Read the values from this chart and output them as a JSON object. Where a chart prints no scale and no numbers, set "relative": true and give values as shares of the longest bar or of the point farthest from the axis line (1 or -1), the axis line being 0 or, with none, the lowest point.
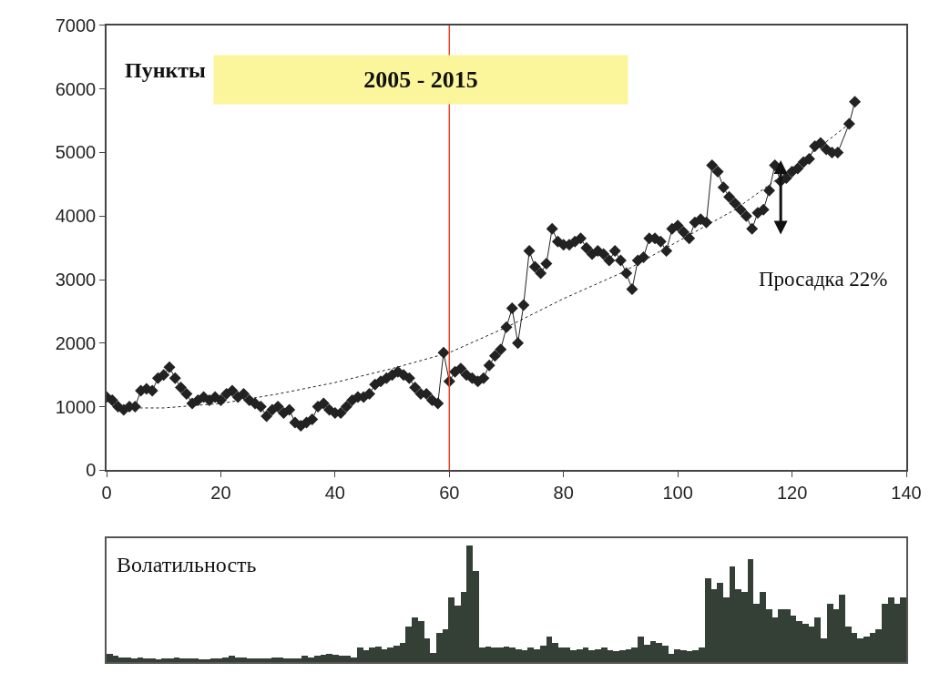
{
  "chart_data": [
    {
      "type": "line",
      "title": "2005 - 2015",
      "ylabel": "Пункты",
      "xlim": [
        0,
        140
      ],
      "xticks": [
        0,
        20,
        40,
        60,
        80,
        100,
        120,
        140
      ],
      "ylim": [
        0,
        7000
      ],
      "yticks": [
        0,
        1000,
        2000,
        3000,
        4000,
        5000,
        6000,
        7000
      ],
      "series": [
        {
          "color": "#222222",
          "marker": "diamond",
          "line_style": "solid",
          "x": [
            0,
            1,
            2,
            3,
            4,
            5,
            6,
            7,
            8,
            9,
            10,
            11,
            12,
            13,
            14,
            15,
            16,
            17,
            18,
            19,
            20,
            21,
            22,
            23,
            24,
            25,
            26,
            27,
            28,
            29,
            30,
            31,
            32,
            33,
            34,
            35,
            36,
            37,
            38,
            39,
            40,
            41,
            42,
            43,
            44,
            45,
            46,
            47,
            48,
            49,
            50,
            51,
            52,
            53,
            54,
            55,
            56,
            57,
            58,
            59,
            60,
            61,
            62,
            63,
            64,
            65,
            66,
            67,
            68,
            69,
            70,
            71,
            72,
            73,
            74,
            75,
            76,
            77,
            78,
            79,
            80,
            81,
            82,
            83,
            84,
            85,
            86,
            87,
            88,
            89,
            90,
            91,
            92,
            93,
            94,
            95,
            96,
            97,
            98,
            99,
            100,
            101,
            102,
            103,
            104,
            105,
            106,
            107,
            108,
            109,
            110,
            111,
            112,
            113,
            114,
            115,
            116,
            117,
            118,
            119,
            120,
            121,
            122,
            123,
            124,
            125,
            126,
            127,
            128,
            130,
            131
          ],
          "values": [
            1150,
            1100,
            1000,
            950,
            1000,
            1000,
            1250,
            1280,
            1250,
            1450,
            1500,
            1620,
            1450,
            1300,
            1200,
            1050,
            1100,
            1150,
            1100,
            1150,
            1100,
            1200,
            1250,
            1150,
            1200,
            1100,
            1050,
            1000,
            850,
            950,
            1000,
            900,
            950,
            750,
            700,
            750,
            800,
            1000,
            1050,
            950,
            900,
            900,
            1000,
            1100,
            1150,
            1150,
            1200,
            1350,
            1400,
            1450,
            1500,
            1550,
            1500,
            1450,
            1300,
            1200,
            1200,
            1100,
            1050,
            1850,
            1400,
            1550,
            1600,
            1500,
            1450,
            1400,
            1450,
            1650,
            1800,
            1900,
            2250,
            2550,
            2000,
            2600,
            3450,
            3200,
            3100,
            3250,
            3800,
            3600,
            3550,
            3550,
            3600,
            3650,
            3500,
            3400,
            3450,
            3400,
            3300,
            3450,
            3300,
            3100,
            2850,
            3300,
            3350,
            3650,
            3650,
            3600,
            3450,
            3800,
            3850,
            3750,
            3650,
            3900,
            3950,
            3900,
            4800,
            4700,
            4450,
            4300,
            4200,
            4100,
            4000,
            3800,
            4050,
            4100,
            4400,
            4800,
            4550,
            4600,
            4700,
            4750,
            4850,
            4900,
            5100,
            5150,
            5050,
            5000,
            5000,
            5450,
            5800
          ]
        },
        {
          "color": "#222222",
          "marker": "none",
          "line_style": "dotted",
          "x": [
            2,
            10,
            20,
            30,
            40,
            50,
            60,
            70,
            80,
            90,
            100,
            110,
            120,
            130
          ],
          "values": [
            980,
            980,
            1050,
            1200,
            1380,
            1600,
            1850,
            2250,
            2700,
            3100,
            3600,
            4100,
            4750,
            5450
          ]
        }
      ],
      "ref_lines": [
        {
          "axis": "x",
          "value": 60,
          "color": "#e8452c"
        }
      ],
      "annotations": [
        "Просадка 22%"
      ]
    },
    {
      "type": "bar",
      "title": "Волатильность",
      "relative": true,
      "color": "#343f36",
      "categories": [
        null,
        null,
        null,
        null,
        null,
        null,
        null,
        null,
        null,
        null,
        null,
        null,
        null,
        null,
        null,
        null,
        null,
        null,
        null,
        null,
        null,
        null,
        null,
        null,
        null,
        null,
        null,
        null,
        null,
        null,
        null,
        null,
        null,
        null,
        null,
        null,
        null,
        null,
        null,
        null,
        null,
        null,
        null,
        null,
        null,
        null,
        null,
        null,
        null,
        null,
        null,
        null,
        null,
        null,
        null,
        null,
        null,
        null,
        null,
        null,
        null,
        null,
        null,
        null,
        null,
        null,
        null,
        null,
        null,
        null,
        null,
        null,
        null,
        null,
        null,
        null,
        null,
        null,
        null,
        null,
        null,
        null,
        null,
        null,
        null,
        null,
        null,
        null,
        null,
        null,
        null,
        null,
        null,
        null,
        null,
        null,
        null,
        null,
        null,
        null,
        null,
        null,
        null,
        null,
        null,
        null,
        null,
        null,
        null,
        null,
        null,
        null,
        null,
        null,
        null,
        null,
        null,
        null,
        null,
        null,
        null,
        null,
        null,
        null,
        null,
        null,
        null,
        null,
        null,
        null,
        null
      ],
      "values": [
        0.07,
        0.05,
        0.04,
        0.04,
        0.03,
        0.04,
        0.03,
        0.03,
        0.02,
        0.03,
        0.03,
        0.04,
        0.03,
        0.03,
        0.03,
        0.02,
        0.02,
        0.03,
        0.03,
        0.04,
        0.05,
        0.04,
        0.04,
        0.03,
        0.03,
        0.03,
        0.03,
        0.04,
        0.04,
        0.03,
        0.03,
        0.03,
        0.05,
        0.04,
        0.05,
        0.06,
        0.07,
        0.06,
        0.05,
        0.05,
        0.04,
        0.12,
        0.1,
        0.12,
        0.13,
        0.11,
        0.12,
        0.14,
        0.16,
        0.3,
        0.38,
        0.35,
        0.2,
        0.08,
        0.25,
        0.28,
        0.55,
        0.48,
        0.6,
        1.0,
        0.78,
        0.12,
        0.13,
        0.12,
        0.12,
        0.13,
        0.12,
        0.11,
        0.1,
        0.12,
        0.11,
        0.14,
        0.22,
        0.16,
        0.12,
        0.12,
        0.1,
        0.11,
        0.12,
        0.1,
        0.11,
        0.12,
        0.1,
        0.09,
        0.1,
        0.11,
        0.12,
        0.22,
        0.15,
        0.18,
        0.16,
        0.14,
        0.07,
        0.11,
        0.1,
        0.09,
        0.1,
        0.12,
        0.72,
        0.62,
        0.68,
        0.55,
        0.82,
        0.62,
        0.6,
        0.88,
        0.5,
        0.6,
        0.45,
        0.38,
        0.45,
        0.45,
        0.4,
        0.35,
        0.33,
        0.3,
        0.38,
        0.2,
        0.5,
        0.45,
        0.58,
        0.3,
        0.25,
        0.2,
        0.22,
        0.25,
        0.28,
        0.5,
        0.55,
        0.5,
        0.55
      ]
    }
  ]
}
